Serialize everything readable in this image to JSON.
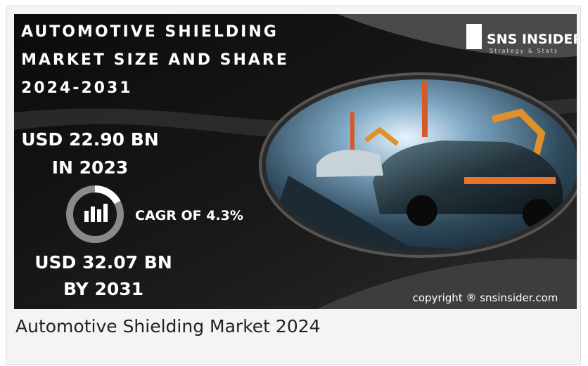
{
  "infographic": {
    "title_lines": [
      "AUTOMOTIVE SHIELDING",
      "MARKET SIZE AND SHARE",
      "2024-2031"
    ],
    "brand": "SNS INSIDER",
    "brand_tagline": "Strategy & Stats",
    "start_value": "USD 22.90 BN",
    "start_year": "IN 2023",
    "cagr": "CAGR OF 4.3%",
    "end_value": "USD 32.07 BN",
    "end_year": "BY 2031",
    "copyright": "copyright ® snsinsider.com"
  },
  "caption": "Automotive Shielding Market 2024"
}
